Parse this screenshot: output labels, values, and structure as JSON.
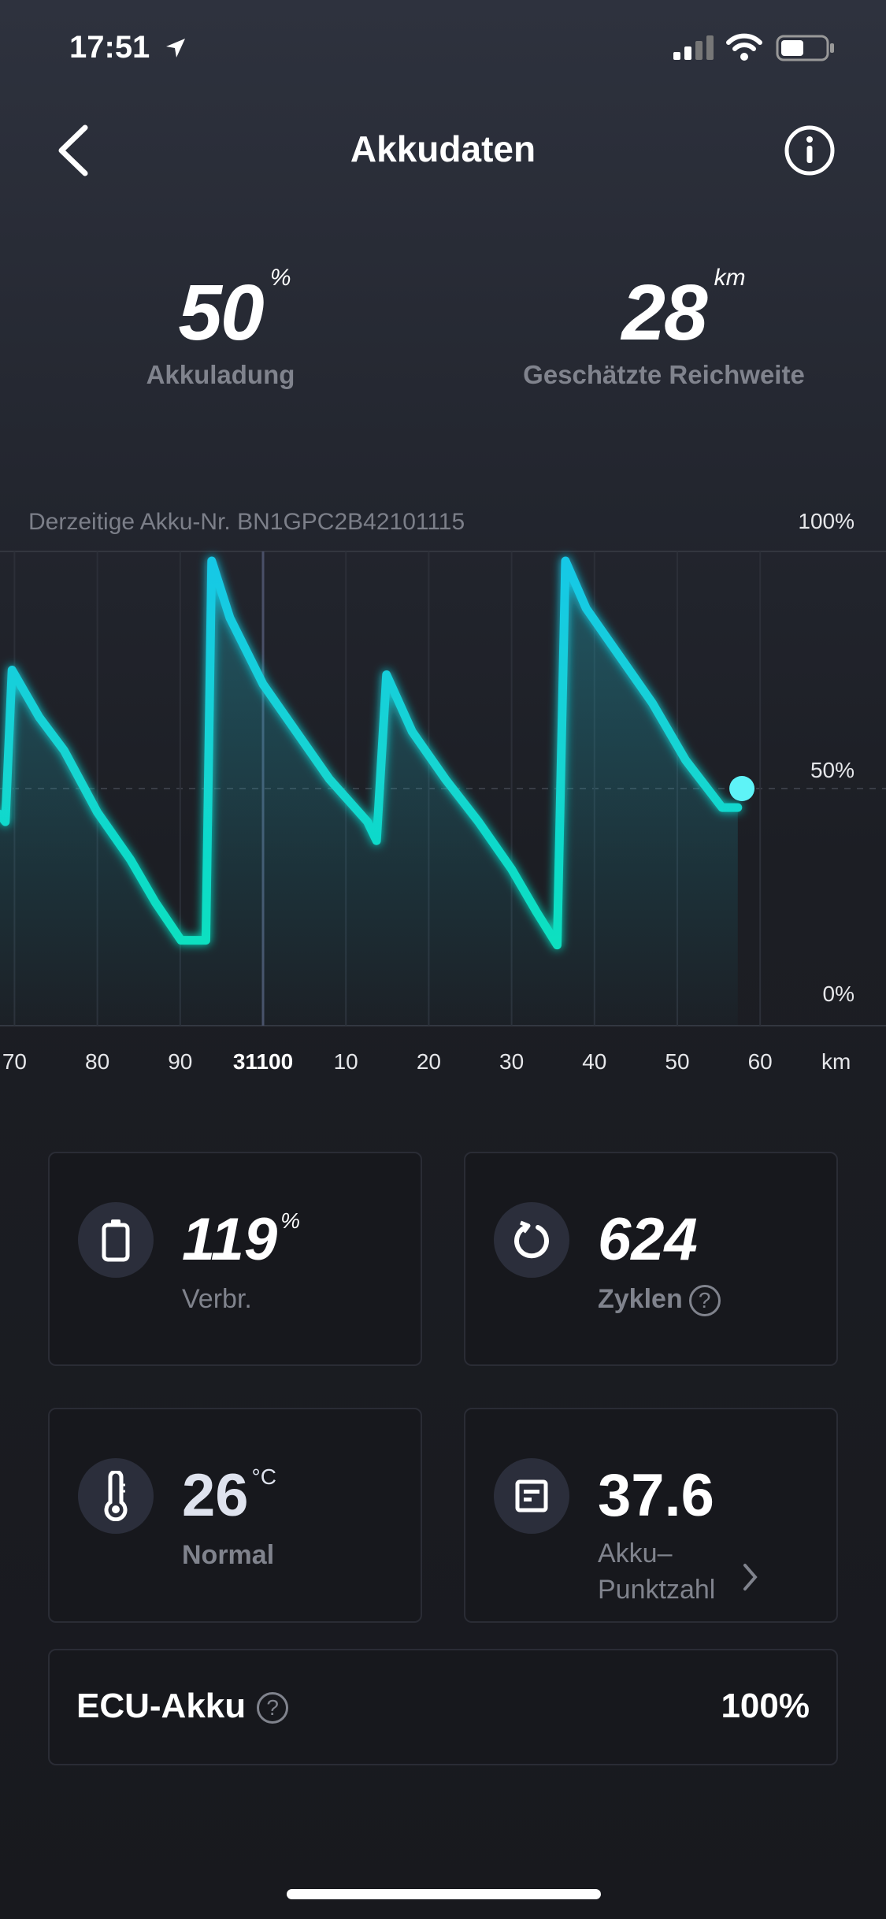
{
  "status_bar": {
    "time": "17:51",
    "location_icon": "location-arrow-icon",
    "signal_icon": "cellular-signal-icon",
    "wifi_icon": "wifi-icon",
    "battery_icon": "battery-icon"
  },
  "header": {
    "title": "Akkudaten",
    "back_icon": "chevron-left-icon",
    "info_icon": "info-icon"
  },
  "summary": {
    "charge": {
      "value": "50",
      "unit": "%",
      "label": "Akkuladung"
    },
    "range": {
      "value": "28",
      "unit": "km",
      "label": "Geschätzte Reichweite"
    }
  },
  "chart_data": {
    "type": "area",
    "title": "Derzeitige Akku-Nr. BN1GPC2B42101115",
    "xlabel": "km",
    "ylabel": "",
    "x_ticks": [
      "70",
      "80",
      "90",
      "31100",
      "10",
      "20",
      "30",
      "40",
      "50",
      "60"
    ],
    "x_tick_values": [
      31070,
      31080,
      31090,
      31100,
      31110,
      31120,
      31130,
      31140,
      31150,
      31160
    ],
    "highlight_tick": "31100",
    "y_ticks": [
      "100%",
      "50%",
      "0%"
    ],
    "ylim": [
      0,
      100
    ],
    "xlim": [
      31068,
      31175
    ],
    "grid": "vertical",
    "line_color": "#1fd3e0",
    "series": [
      {
        "x": [
          31068.2,
          31068.9,
          31069.7,
          31073,
          31076,
          31080,
          31084,
          31087,
          31090.1,
          31093.1,
          31093.8,
          31096,
          31100,
          31104,
          31108,
          31112.6,
          31113.7,
          31114.9,
          31118,
          31122,
          31126,
          31130,
          31133,
          31135.5,
          31136.5,
          31139,
          31143,
          31147,
          31151,
          31155.4,
          31157.3,
          31157.8
        ],
        "y": [
          44.6,
          43,
          75,
          65,
          58,
          45,
          35,
          26,
          18,
          18,
          98,
          86,
          72,
          62,
          52,
          43,
          39,
          74,
          62,
          52,
          43,
          33,
          24,
          17,
          98,
          88,
          78,
          68,
          56,
          46,
          46,
          50
        ]
      }
    ]
  },
  "cards": [
    {
      "icon": "battery-icon",
      "value": "119",
      "unit": "%",
      "label": "Verbr."
    },
    {
      "icon": "refresh-cycle-icon",
      "value": "624",
      "unit": "",
      "label": "Zyklen",
      "help": "?"
    },
    {
      "icon": "thermometer-icon",
      "value": "26",
      "unit": "°C",
      "label": "Normal"
    },
    {
      "icon": "score-document-icon",
      "value": "37.6",
      "unit": "",
      "label_line1": "Akku–",
      "label_line2": "Punktzahl"
    }
  ],
  "ecu": {
    "label": "ECU-Akku",
    "help": "?",
    "value": "100%"
  }
}
